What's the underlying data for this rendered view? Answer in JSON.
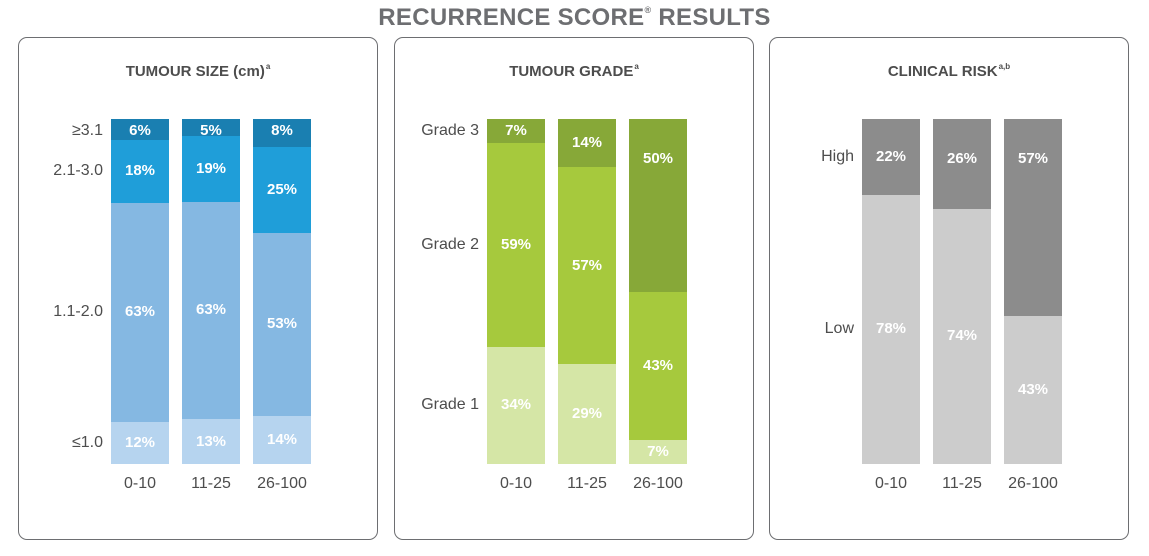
{
  "title": {
    "text": "RECURRENCE SCORE",
    "mark": "®",
    "rest": " RESULTS"
  },
  "colors": {
    "size_le1": "#b6d4ef",
    "size_1_2": "#85b8e2",
    "size_2_3": "#1f9ed9",
    "size_ge3": "#1a7fb1",
    "grade1": "#d5e6a6",
    "grade2": "#a6c93d",
    "grade3": "#87a838",
    "low": "#cccccc",
    "high": "#8c8c8c"
  },
  "chart_data": [
    {
      "type": "bar",
      "stacked": true,
      "title": "TUMOUR SIZE (cm)",
      "title_sup": "a",
      "categories": [
        "0-10",
        "11-25",
        "26-100"
      ],
      "series": [
        {
          "name": "≤1.0",
          "values": [
            12,
            13,
            14
          ],
          "labels": [
            "12%",
            "13%",
            "14%"
          ],
          "color": "#b6d4ef"
        },
        {
          "name": "1.1-2.0",
          "values": [
            63,
            63,
            53
          ],
          "labels": [
            "63%",
            "63%",
            "53%"
          ],
          "color": "#85b8e2"
        },
        {
          "name": "2.1-3.0",
          "values": [
            18,
            19,
            25
          ],
          "labels": [
            "18%",
            "19%",
            "25%"
          ],
          "color": "#1f9ed9"
        },
        {
          "name": "≥3.1",
          "values": [
            6,
            5,
            8
          ],
          "labels": [
            "6%",
            "5%",
            "8%"
          ],
          "color": "#1a7fb1"
        }
      ]
    },
    {
      "type": "bar",
      "stacked": true,
      "title": "TUMOUR GRADE",
      "title_sup": "a",
      "categories": [
        "0-10",
        "11-25",
        "26-100"
      ],
      "series": [
        {
          "name": "Grade 1",
          "values": [
            34,
            29,
            7
          ],
          "labels": [
            "34%",
            "29%",
            "7%"
          ],
          "color": "#d5e6a6"
        },
        {
          "name": "Grade 2",
          "values": [
            59,
            57,
            43
          ],
          "labels": [
            "59%",
            "57%",
            "43%"
          ],
          "color": "#a6c93d"
        },
        {
          "name": "Grade 3",
          "values": [
            7,
            14,
            50
          ],
          "labels": [
            "7%",
            "14%",
            "50%"
          ],
          "color": "#87a838"
        }
      ]
    },
    {
      "type": "bar",
      "stacked": true,
      "title": "CLINICAL RISK",
      "title_sup": "a,b",
      "categories": [
        "0-10",
        "11-25",
        "26-100"
      ],
      "series": [
        {
          "name": "Low",
          "values": [
            78,
            74,
            43
          ],
          "labels": [
            "78%",
            "74%",
            "43%"
          ],
          "color": "#cccccc"
        },
        {
          "name": "High",
          "values": [
            22,
            26,
            57
          ],
          "labels": [
            "22%",
            "26%",
            "57%"
          ],
          "color": "#8c8c8c"
        }
      ]
    }
  ]
}
